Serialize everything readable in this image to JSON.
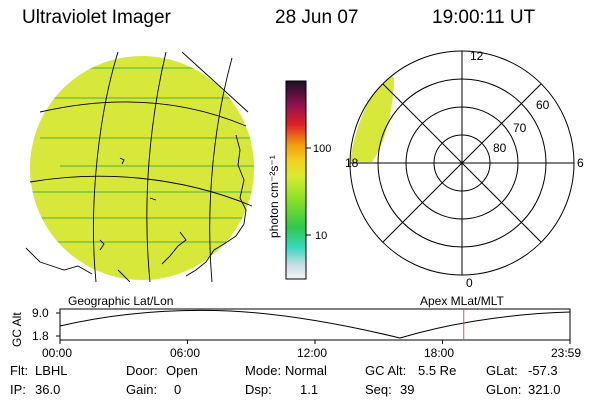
{
  "header": {
    "instrument": "Ultraviolet Imager",
    "date": "28 Jun 07",
    "time": "19:00:11 UT"
  },
  "colorbar": {
    "unit_label": "photon cm⁻²s⁻¹",
    "tick_100": "100",
    "tick_10": "10"
  },
  "polar_plot": {
    "mlt_12": "12",
    "mlt_18": "18",
    "mlt_6": "6",
    "mlt_0": "0",
    "lat_60": "60",
    "lat_70": "70",
    "lat_80": "80"
  },
  "altitude_plot": {
    "axis_label": "GC Alt",
    "y_max": "9.0",
    "y_min": "1.8",
    "left_caption": "Geographic Lat/Lon",
    "right_caption": "Apex MLat/MLT",
    "x_ticks": [
      "00:00",
      "06:00",
      "12:00",
      "18:00",
      "23:59"
    ],
    "current_time_hours": 19.0
  },
  "footer": {
    "flt_label": "Flt:",
    "flt_value": "LBHL",
    "ip_label": "IP:",
    "ip_value": "36.0",
    "door_label": "Door:",
    "door_value": "Open",
    "gain_label": "Gain:",
    "gain_value": "0",
    "mode_label": "Mode:",
    "mode_value": "Normal",
    "dsp_label": "Dsp:",
    "dsp_value": "1.1",
    "gcalt_label": "GC Alt:",
    "gcalt_value": "5.5 Re",
    "seq_label": "Seq:",
    "seq_value": "39",
    "glat_label": "GLat:",
    "glat_value": "-57.3",
    "glon_label": "GLon:",
    "glon_value": "321.0"
  },
  "colors": {
    "image_fill": "#d8e83a",
    "line": "#000000",
    "current_time_marker": "#e05050"
  }
}
